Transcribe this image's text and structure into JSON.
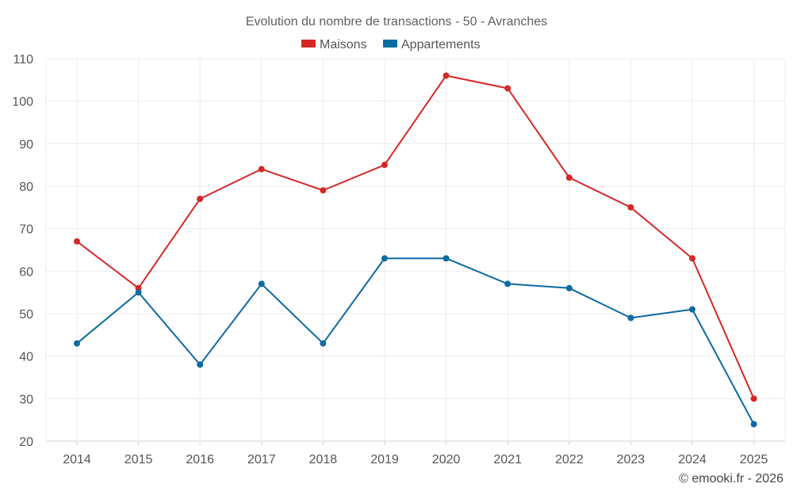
{
  "chart_data": {
    "type": "line",
    "title": "Evolution du nombre de transactions - 50 - Avranches",
    "categories": [
      "2014",
      "2015",
      "2016",
      "2017",
      "2018",
      "2019",
      "2020",
      "2021",
      "2022",
      "2023",
      "2024",
      "2025"
    ],
    "series": [
      {
        "name": "Maisons",
        "color": "#d62728",
        "values": [
          67,
          56,
          77,
          84,
          79,
          85,
          106,
          103,
          82,
          75,
          63,
          30
        ]
      },
      {
        "name": "Appartements",
        "color": "#0b6aa2",
        "values": [
          43,
          55,
          38,
          57,
          43,
          63,
          63,
          57,
          56,
          49,
          51,
          24
        ]
      }
    ],
    "yticks": [
      20,
      30,
      40,
      50,
      60,
      70,
      80,
      90,
      100,
      110
    ],
    "ylim": [
      20,
      110
    ],
    "xlabel": "",
    "ylabel": "",
    "grid": true,
    "legend_position": "top-center"
  },
  "credit": "© emooki.fr - 2026"
}
